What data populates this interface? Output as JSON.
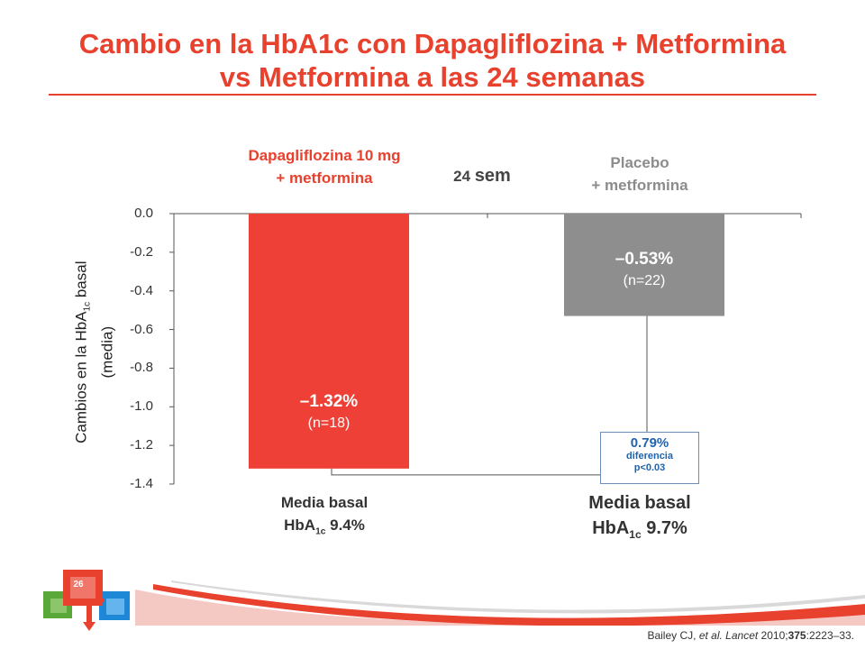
{
  "title": {
    "line1": "Cambio en la HbA1c con Dapagliflozina + Metformina",
    "line2": "vs Metformina a las 24 semanas"
  },
  "timepoint": {
    "number": "24",
    "unit": "sem"
  },
  "y_axis": {
    "label_line1_pre": "Cambios en la HbA",
    "label_line1_sub": "1c",
    "label_line1_post": " basal",
    "label_line2": "(media)"
  },
  "series_labels": {
    "dapa_line1": "Dapagliflozina 10 mg",
    "dapa_line2": "+ metformina",
    "placebo_line1": "Placebo",
    "placebo_line2": "+ metformina"
  },
  "bars": {
    "dapa": {
      "value_label": "–1.32%",
      "n_label": "(n=18)"
    },
    "placebo": {
      "value_label": "–0.53%",
      "n_label": "(n=22)"
    }
  },
  "difference": {
    "value": "0.79%",
    "label": "diferencia",
    "p": "p<0.03"
  },
  "baseline": {
    "dapa": {
      "line1": "Media basal",
      "pre": "HbA",
      "sub": "1c",
      "post": " 9.4%"
    },
    "placebo": {
      "line1": "Media basal",
      "pre": "HbA",
      "sub": "1c",
      "post": " 9.7%"
    }
  },
  "citation": {
    "authors": "Bailey CJ, ",
    "etal": "et al.",
    "journal": "Lancet",
    "year": "2010;",
    "volume": "375",
    "pages": ":2223–33."
  },
  "page_number": "26",
  "colors": {
    "accent": "#e8412e",
    "dapa_bar": "#ee4036",
    "placebo_bar": "#8e8e8e",
    "diff_text": "#1e63b0"
  },
  "chart_data": {
    "type": "bar",
    "categories": [
      "Dapagliflozina 10 mg + metformina",
      "Placebo + metformina"
    ],
    "values": [
      -1.32,
      -0.53
    ],
    "n": [
      18,
      22
    ],
    "baseline_hba1c": [
      9.4,
      9.7
    ],
    "difference": 0.79,
    "p_value": "p<0.03",
    "ylim": [
      -1.4,
      0.0
    ],
    "yticks": [
      "0.0",
      "-0.2",
      "-0.4",
      "-0.6",
      "-0.8",
      "-1.0",
      "-1.2",
      "-1.4"
    ],
    "ytick_values": [
      0.0,
      -0.2,
      -0.4,
      -0.6,
      -0.8,
      -1.0,
      -1.2,
      -1.4
    ],
    "ylabel": "Cambios en la HbA1c basal (media)",
    "grid": false
  }
}
